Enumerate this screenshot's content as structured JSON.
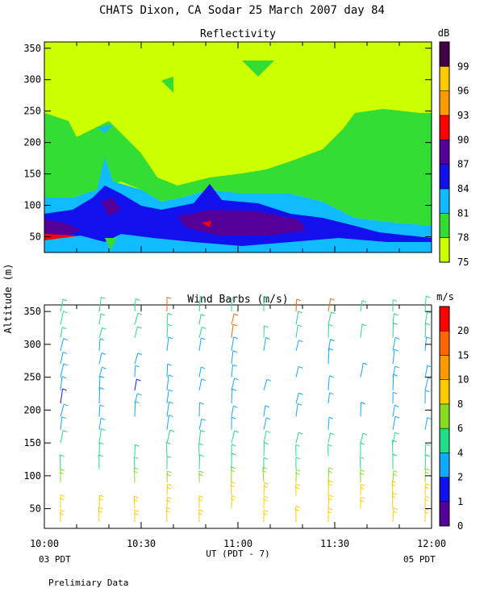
{
  "header": {
    "title": "CHATS Dixon, CA  Sodar  25 March 2007  day  84"
  },
  "axes": {
    "ylabel": "Altitude (m)",
    "xlabel": "UT  (PDT - 7)",
    "x_ticks": [
      "10:00",
      "10:30",
      "11:00",
      "11:30",
      "12:00"
    ],
    "x_left_note": "03 PDT",
    "x_right_note": "05 PDT",
    "footer": "Prelimiary Data"
  },
  "chart_data": [
    {
      "type": "heatmap",
      "title": "Reflectivity",
      "ylim": [
        25,
        360
      ],
      "y_ticks": [
        50,
        100,
        150,
        200,
        250,
        300,
        350
      ],
      "x_range_minutes": [
        0,
        120
      ],
      "colorbar": {
        "unit": "dB",
        "labels": [
          "75",
          "78",
          "81",
          "84",
          "87",
          "90",
          "93",
          "96",
          "99"
        ],
        "colors": [
          "#ccff00",
          "#33dd33",
          "#11bbff",
          "#1111ee",
          "#550099",
          "#ff0000",
          "#ff9900",
          "#ffcc00",
          "#440044"
        ]
      },
      "bands_db": [
        75,
        78,
        81,
        84,
        87,
        90
      ],
      "notes": "contours of reflectivity (dB) vs time and altitude; white = below 75 dB"
    },
    {
      "type": "scatter",
      "title": "Wind Barbs (m/s)",
      "ylim": [
        20,
        360
      ],
      "y_ticks": [
        50,
        100,
        150,
        200,
        250,
        300,
        350
      ],
      "x_range_minutes": [
        0,
        120
      ],
      "colorbar": {
        "unit": "m/s",
        "labels": [
          "0",
          "1",
          "2",
          "4",
          "6",
          "8",
          "10",
          "15",
          "20"
        ],
        "colors": [
          "#550099",
          "#1111ee",
          "#11aaff",
          "#22dd88",
          "#88dd22",
          "#ffcc00",
          "#ff9900",
          "#ff6600",
          "#ff0000"
        ]
      },
      "columns_minutes": [
        5,
        17,
        28,
        38,
        48,
        58,
        68,
        78,
        88,
        98,
        108,
        118
      ],
      "heights_m": [
        30,
        50,
        70,
        90,
        110,
        130,
        150,
        170,
        190,
        210,
        230,
        250,
        270,
        290,
        310,
        330,
        350
      ]
    }
  ]
}
